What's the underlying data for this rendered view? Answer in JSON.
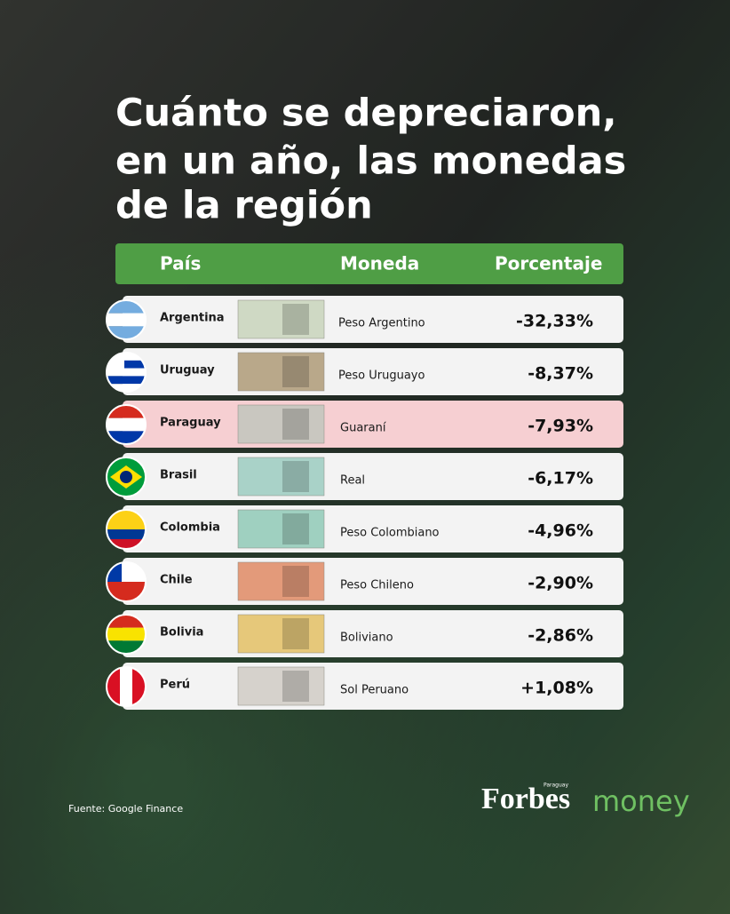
{
  "header": {
    "title_lines": [
      "Cuánto se depreciaron,",
      "en un año, las monedas",
      "de la región"
    ]
  },
  "table": {
    "columns": [
      "País",
      "Moneda",
      "Porcentaje"
    ],
    "rows": [
      [
        "Argentina",
        "Peso Argentino",
        "-32,33%"
      ],
      [
        "Uruguay",
        "Peso Uruguayo",
        "-8,37%"
      ],
      [
        "Paraguay",
        "Guaraní",
        "-7,93%"
      ],
      [
        "Brasil",
        "Real",
        "-6,17%"
      ],
      [
        "Colombia",
        "Peso  Colombiano",
        "-4,96%"
      ],
      [
        "Chile",
        "Peso Chileno",
        "-2,90%"
      ],
      [
        "Bolivia",
        "Boliviano",
        "-2,86%"
      ],
      [
        "Perú",
        "Sol Peruano",
        "+1,08%"
      ]
    ]
  },
  "footer": {
    "source": "Fuente: Google Finance",
    "logo": "Forbes",
    "logo_region": "Paraguay",
    "logo_suffix": "money"
  }
}
